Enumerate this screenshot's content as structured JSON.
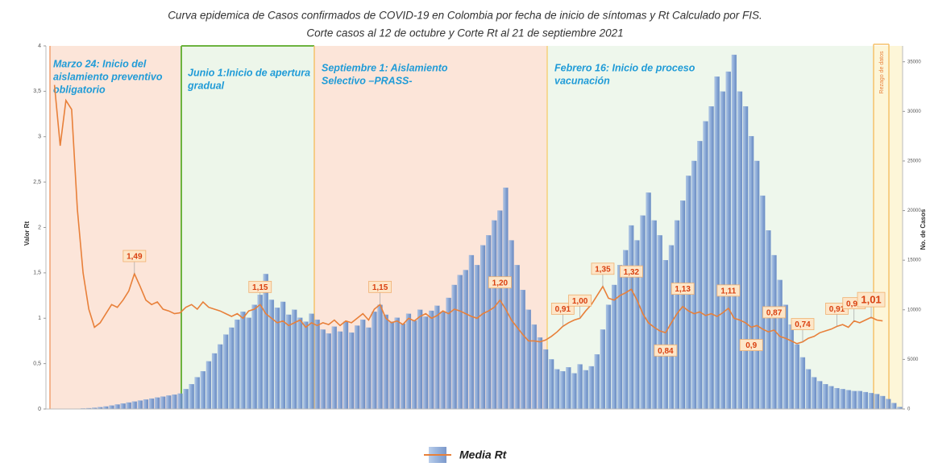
{
  "chart_data": {
    "type": "bar-line",
    "title": [
      "Curva epidemica de Casos confirmados de COVID-19 en Colombia por fecha de inicio de síntomas y Rt Calculado por FIS.",
      "Corte casos al 12 de octubre y Corte Rt al 21  de septiembre 2021"
    ],
    "ylabel": "Valor Rt",
    "y2label": "No. de Casos",
    "ylim": [
      0,
      4
    ],
    "yticks": [
      0,
      {
        "value": 0.5,
        "label": "0,5"
      },
      1,
      {
        "value": 1.5,
        "label": "1,5"
      },
      2,
      {
        "value": 2.5,
        "label": "2,5"
      },
      3,
      {
        "value": 3.5,
        "label": "3,5"
      },
      4
    ],
    "y2lim": [
      0,
      36600
    ],
    "y2ticks": [
      0,
      5000,
      10000,
      15000,
      20000,
      25000,
      30000,
      35000
    ],
    "annotations": [
      [
        "Marzo 24: Inicio del",
        "aislamiento preventivo",
        "obligatorio"
      ],
      [
        "Junio 1:Inicio de apertura",
        "gradual"
      ],
      [
        "Septiembre 1: Aislamiento",
        "Selectivo –PRASS-"
      ],
      [
        "Febrero 16: Inicio de proceso",
        "vacunación"
      ]
    ],
    "rezago_label": "Rezago de datos",
    "series": [
      {
        "type": "bar",
        "axis": "y2",
        "color": "#7d9fd3",
        "values": [
          0,
          0,
          0,
          10,
          20,
          30,
          50,
          80,
          120,
          180,
          250,
          350,
          450,
          550,
          650,
          750,
          850,
          950,
          1050,
          1150,
          1250,
          1350,
          1450,
          1550,
          2000,
          2500,
          3200,
          3800,
          4800,
          5600,
          6500,
          7500,
          8200,
          9000,
          9800,
          9200,
          10500,
          11500,
          13600,
          11000,
          10200,
          10800,
          9500,
          10000,
          9200,
          8800,
          9600,
          9000,
          8000,
          7600,
          8300,
          7800,
          8800,
          7700,
          8400,
          9000,
          8200,
          9800,
          10500,
          9500,
          8800,
          9200,
          8600,
          9600,
          8900,
          10000,
          9300,
          9900,
          10400,
          9800,
          11200,
          12500,
          13500,
          14000,
          15500,
          14500,
          16500,
          17500,
          19000,
          20000,
          22300,
          17000,
          14500,
          12000,
          10000,
          8500,
          7200,
          6000,
          5000,
          4000,
          3800,
          4200,
          3600,
          4500,
          3900,
          4300,
          5500,
          8000,
          10500,
          12500,
          14500,
          16000,
          18500,
          17000,
          19500,
          21800,
          19000,
          17500,
          15000,
          16500,
          19000,
          21000,
          23500,
          25000,
          27000,
          29000,
          30500,
          33500,
          32000,
          34000,
          35700,
          32000,
          30500,
          27500,
          25000,
          21500,
          18000,
          15500,
          13000,
          10500,
          8500,
          6500,
          5200,
          4000,
          3200,
          2800,
          2500,
          2300,
          2100,
          2000,
          1900,
          1800,
          1800,
          1700,
          1600,
          1500,
          1300,
          1000,
          600,
          200
        ]
      },
      {
        "type": "line",
        "name": "Media Rt",
        "axis": "y",
        "color": "#e8803a",
        "values": [
          null,
          3.57,
          2.9,
          3.4,
          3.3,
          2.2,
          1.5,
          1.1,
          0.9,
          0.95,
          1.05,
          1.15,
          1.12,
          1.2,
          1.3,
          1.49,
          1.35,
          1.2,
          1.15,
          1.18,
          1.1,
          1.08,
          1.05,
          1.06,
          1.12,
          1.15,
          1.1,
          1.18,
          1.12,
          1.1,
          1.08,
          1.05,
          1.02,
          1.05,
          1.0,
          1.08,
          1.1,
          1.15,
          1.05,
          1.0,
          0.95,
          0.97,
          0.92,
          0.95,
          0.98,
          0.9,
          0.95,
          0.92,
          0.95,
          0.93,
          0.98,
          0.92,
          0.97,
          0.95,
          1.0,
          1.05,
          0.98,
          1.1,
          1.15,
          1.0,
          0.95,
          0.97,
          0.93,
          1.0,
          0.97,
          1.02,
          1.05,
          1.0,
          1.03,
          1.08,
          1.05,
          1.1,
          1.08,
          1.05,
          1.02,
          1.0,
          1.05,
          1.08,
          1.12,
          1.2,
          1.1,
          0.98,
          0.9,
          0.82,
          0.75,
          0.75,
          0.74,
          0.76,
          0.8,
          0.85,
          0.91,
          0.95,
          0.98,
          1.0,
          1.08,
          1.15,
          1.25,
          1.35,
          1.22,
          1.2,
          1.25,
          1.28,
          1.32,
          1.2,
          1.05,
          0.95,
          0.9,
          0.86,
          0.84,
          0.95,
          1.05,
          1.13,
          1.08,
          1.05,
          1.07,
          1.03,
          1.05,
          1.02,
          1.06,
          1.11,
          1.0,
          0.98,
          0.95,
          0.9,
          0.92,
          0.88,
          0.85,
          0.87,
          0.8,
          0.78,
          0.75,
          0.72,
          0.74,
          0.78,
          0.8,
          0.84,
          0.86,
          0.88,
          0.91,
          0.93,
          0.9,
          0.97,
          0.95,
          0.98,
          1.01,
          0.98,
          0.97,
          null,
          null,
          null
        ],
        "value_labels": [
          null,
          null,
          null,
          null,
          null,
          null,
          null,
          null,
          null,
          null,
          null,
          null,
          null,
          null,
          null,
          "1,49",
          null,
          null,
          null,
          null,
          null,
          null,
          null,
          null,
          null,
          null,
          null,
          null,
          null,
          null,
          null,
          null,
          null,
          null,
          null,
          null,
          null,
          "1,15",
          null,
          null,
          null,
          null,
          null,
          null,
          null,
          null,
          null,
          null,
          null,
          null,
          null,
          null,
          null,
          null,
          null,
          null,
          null,
          null,
          "1,15",
          null,
          null,
          null,
          null,
          null,
          null,
          null,
          null,
          null,
          null,
          null,
          null,
          null,
          null,
          null,
          null,
          null,
          null,
          null,
          null,
          "1,20",
          null,
          null,
          null,
          null,
          null,
          null,
          null,
          null,
          null,
          null,
          "0,91",
          null,
          null,
          "1,00",
          null,
          null,
          null,
          "1,35",
          null,
          null,
          null,
          null,
          "1,32",
          null,
          null,
          null,
          null,
          null,
          "0,84",
          null,
          null,
          "1,13",
          null,
          null,
          null,
          null,
          null,
          null,
          null,
          "1,11",
          null,
          null,
          null,
          "0,9",
          null,
          null,
          null,
          "0,87",
          null,
          null,
          null,
          null,
          "0,74",
          null,
          null,
          null,
          null,
          null,
          "0,91",
          null,
          null,
          "0,97",
          null,
          null,
          "1,01",
          null,
          null,
          null,
          null,
          null
        ]
      }
    ]
  }
}
